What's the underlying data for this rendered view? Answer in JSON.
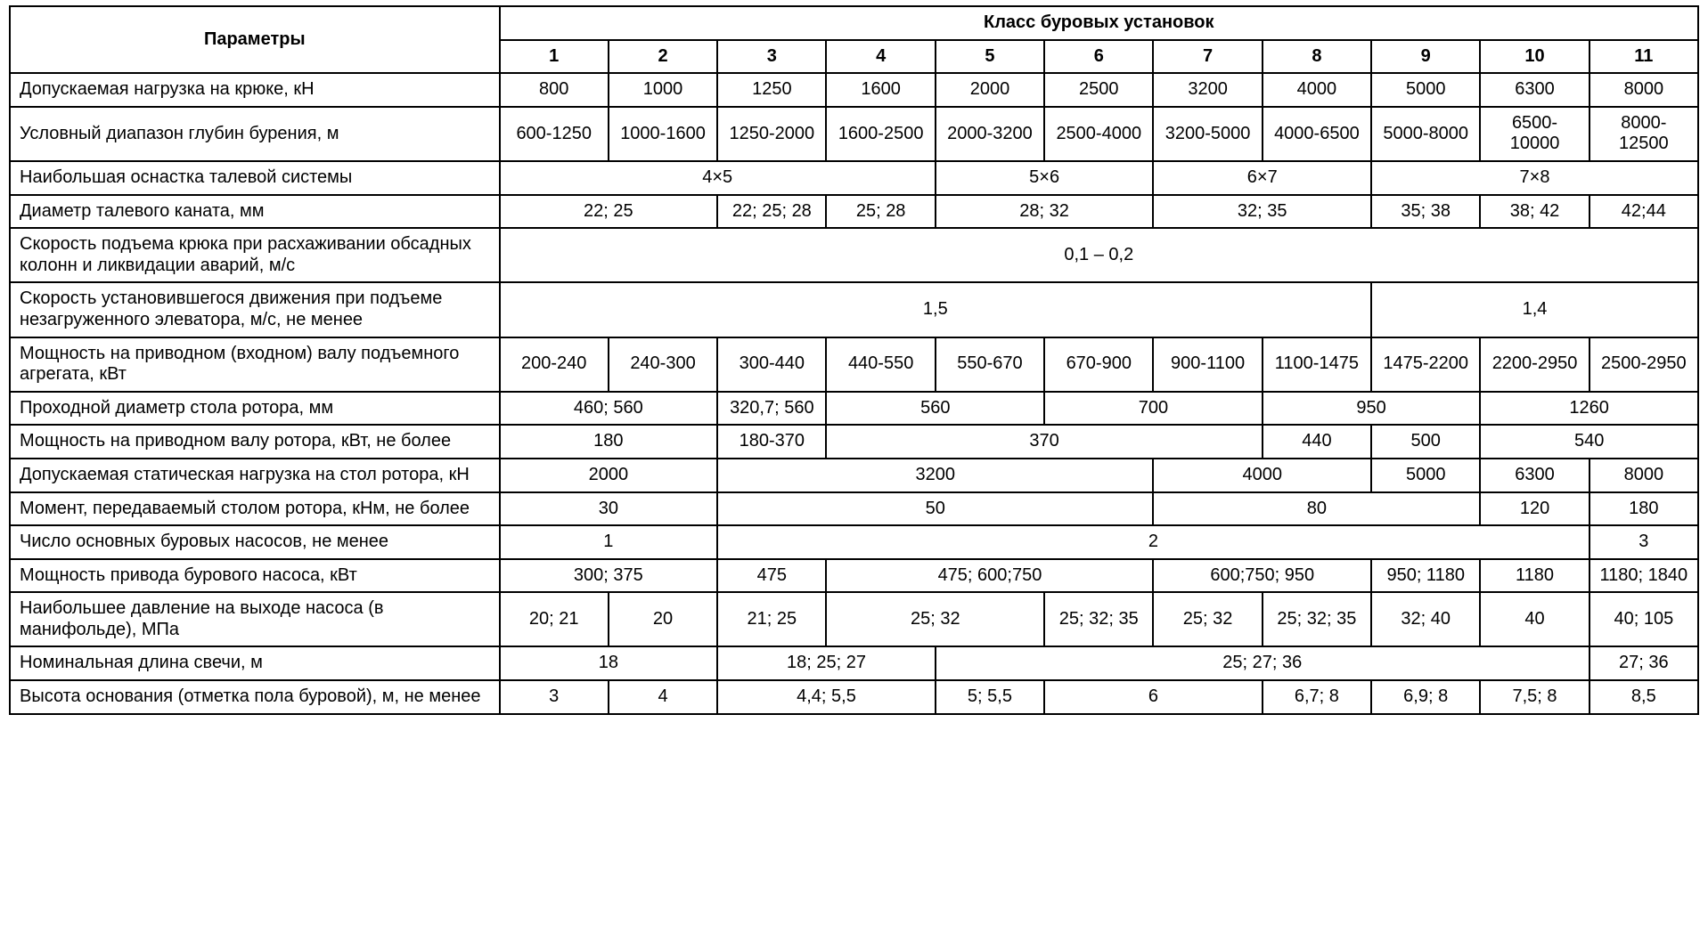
{
  "table": {
    "colors": {
      "border": "#000000",
      "text": "#000000",
      "bg": "#ffffff"
    },
    "fonts": {
      "body_pt": 15,
      "head_weight": 700
    },
    "param_col_width_pct": 29,
    "header": {
      "param_label": "Параметры",
      "class_label": "Класс буровых установок",
      "class_numbers": [
        "1",
        "2",
        "3",
        "4",
        "5",
        "6",
        "7",
        "8",
        "9",
        "10",
        "11"
      ]
    },
    "rows": [
      {
        "label": "Допускаемая нагрузка на крюке, кН",
        "cells": [
          [
            "800"
          ],
          [
            "1000"
          ],
          [
            "1250"
          ],
          [
            "1600"
          ],
          [
            "2000"
          ],
          [
            "2500"
          ],
          [
            "3200"
          ],
          [
            "4000"
          ],
          [
            "5000"
          ],
          [
            "6300"
          ],
          [
            "8000"
          ]
        ]
      },
      {
        "label": "Условный диапазон глубин бурения, м",
        "cells": [
          [
            "600-1250"
          ],
          [
            "1000-1600"
          ],
          [
            "1250-2000"
          ],
          [
            "1600-2500"
          ],
          [
            "2000-3200"
          ],
          [
            "2500-4000"
          ],
          [
            "3200-5000"
          ],
          [
            "4000-6500"
          ],
          [
            "5000-8000"
          ],
          [
            "6500-10000"
          ],
          [
            "8000-12500"
          ]
        ]
      },
      {
        "label": "Наибольшая оснастка талевой системы",
        "cells": [
          [
            "4×5",
            4
          ],
          [
            "5×6",
            2
          ],
          [
            "6×7",
            2
          ],
          [
            "7×8",
            3
          ]
        ]
      },
      {
        "label": "Диаметр талевого каната, мм",
        "cells": [
          [
            "22; 25",
            2
          ],
          [
            "22; 25; 28"
          ],
          [
            "25; 28"
          ],
          [
            "28; 32",
            2
          ],
          [
            "32; 35",
            2
          ],
          [
            "35; 38"
          ],
          [
            "38; 42"
          ],
          [
            "42;44"
          ]
        ]
      },
      {
        "label": "Скорость подъема крюка при расхаживании обсадных колонн и ликвидации аварий, м/с",
        "cells": [
          [
            "0,1 – 0,2",
            11
          ]
        ]
      },
      {
        "label": "Скорость установившегося движения при подъеме незагруженного элеватора, м/с, не менее",
        "cells": [
          [
            "1,5",
            8
          ],
          [
            "1,4",
            3
          ]
        ]
      },
      {
        "label": "Мощность на приводном (входном) валу подъемного агрегата, кВт",
        "cells": [
          [
            "200-240"
          ],
          [
            "240-300"
          ],
          [
            "300-440"
          ],
          [
            "440-550"
          ],
          [
            "550-670"
          ],
          [
            "670-900"
          ],
          [
            "900-1100"
          ],
          [
            "1100-1475"
          ],
          [
            "1475-2200"
          ],
          [
            "2200-2950"
          ],
          [
            "2500-2950"
          ]
        ]
      },
      {
        "label": "Проходной диаметр стола ротора, мм",
        "cells": [
          [
            "460; 560",
            2
          ],
          [
            "320,7; 560"
          ],
          [
            "560",
            2
          ],
          [
            "700",
            2
          ],
          [
            "950",
            2
          ],
          [
            "1260",
            2
          ]
        ]
      },
      {
        "label": "Мощность на приводном валу ротора, кВт, не более",
        "cells": [
          [
            "180",
            2
          ],
          [
            "180-370"
          ],
          [
            "370",
            4
          ],
          [
            "440"
          ],
          [
            "500"
          ],
          [
            "540",
            2
          ]
        ]
      },
      {
        "label": "Допускаемая статическая нагрузка на стол ротора, кН",
        "cells": [
          [
            "2000",
            2
          ],
          [
            "3200",
            4
          ],
          [
            "4000",
            2
          ],
          [
            "5000"
          ],
          [
            "6300"
          ],
          [
            "8000"
          ]
        ]
      },
      {
        "label": "Момент, передаваемый столом ротора, кНм, не более",
        "cells": [
          [
            "30",
            2
          ],
          [
            "50",
            4
          ],
          [
            "80",
            3
          ],
          [
            "120"
          ],
          [
            "180"
          ]
        ]
      },
      {
        "label": "Число основных буровых насосов, не менее",
        "cells": [
          [
            "1",
            2
          ],
          [
            "2",
            8
          ],
          [
            "3"
          ]
        ]
      },
      {
        "label": "Мощность привода бурового насоса, кВт",
        "cells": [
          [
            "300; 375",
            2
          ],
          [
            "475"
          ],
          [
            "475; 600;750",
            3
          ],
          [
            "600;750; 950",
            2
          ],
          [
            "950; 1180"
          ],
          [
            "1180"
          ],
          [
            "1180; 1840"
          ]
        ]
      },
      {
        "label": "Наибольшее давление на выходе насоса (в манифольде), МПа",
        "cells": [
          [
            "20; 21"
          ],
          [
            "20"
          ],
          [
            "21; 25"
          ],
          [
            "25; 32",
            2
          ],
          [
            "25; 32; 35"
          ],
          [
            "25; 32"
          ],
          [
            "25; 32; 35"
          ],
          [
            "32; 40"
          ],
          [
            "40"
          ],
          [
            "40; 105"
          ]
        ]
      },
      {
        "label": "Номинальная длина свечи, м",
        "cells": [
          [
            "18",
            2
          ],
          [
            "18; 25; 27",
            2
          ],
          [
            "25; 27; 36",
            6
          ],
          [
            "27; 36"
          ]
        ]
      },
      {
        "label": "Высота основания (отметка пола буровой), м, не менее",
        "cells": [
          [
            "3"
          ],
          [
            "4"
          ],
          [
            "4,4; 5,5",
            2
          ],
          [
            "5; 5,5"
          ],
          [
            "6",
            2
          ],
          [
            "6,7; 8"
          ],
          [
            "6,9; 8"
          ],
          [
            "7,5; 8"
          ],
          [
            "8,5"
          ]
        ]
      }
    ]
  }
}
